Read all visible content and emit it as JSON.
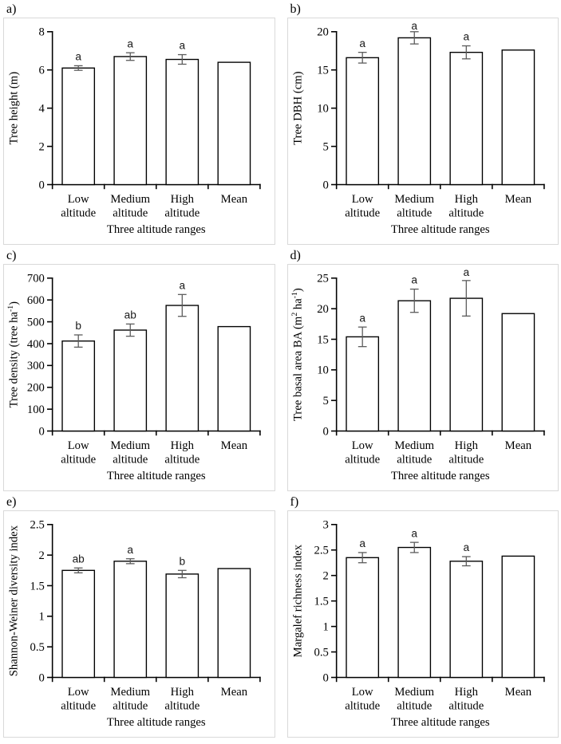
{
  "colors": {
    "bar_fill": "#ffffff",
    "bar_stroke": "#000000",
    "axis": "#000000",
    "error_bar": "#595959",
    "panel_border": "#d9d9d9"
  },
  "chart_data": [
    {
      "type": "bar",
      "panel": "a)",
      "ylabel": [
        {
          "t": "Tree height (m)",
          "sup": false
        }
      ],
      "xlabel": "Three altitude ranges",
      "categories": [
        [
          "Low",
          "altitude"
        ],
        [
          "Medium",
          "altitude"
        ],
        [
          "High",
          "altitude"
        ],
        [
          "Mean"
        ]
      ],
      "values": [
        6.1,
        6.7,
        6.55,
        6.4
      ],
      "errors": [
        0.12,
        0.2,
        0.25,
        null
      ],
      "letters": [
        "a",
        "a",
        "a",
        null
      ],
      "ylim": [
        0,
        8
      ],
      "yticks": [
        "0",
        "2",
        "4",
        "6",
        "8"
      ]
    },
    {
      "type": "bar",
      "panel": "b)",
      "ylabel": [
        {
          "t": "Tree DBH (cm)",
          "sup": false
        }
      ],
      "xlabel": "Three altitude ranges",
      "categories": [
        [
          "Low",
          "altitude"
        ],
        [
          "Medium",
          "altitude"
        ],
        [
          "High",
          "altitude"
        ],
        [
          "Mean"
        ]
      ],
      "values": [
        16.6,
        19.2,
        17.3,
        17.6
      ],
      "errors": [
        0.7,
        0.8,
        0.85,
        null
      ],
      "letters": [
        "a",
        "a",
        "a",
        null
      ],
      "ylim": [
        0,
        20
      ],
      "yticks": [
        "0",
        "5",
        "10",
        "15",
        "20"
      ]
    },
    {
      "type": "bar",
      "panel": "c)",
      "ylabel": [
        {
          "t": "Tree density (tree ha",
          "sup": false
        },
        {
          "t": "-1",
          "sup": true
        },
        {
          "t": ")",
          "sup": false
        }
      ],
      "xlabel": "Three altitude ranges",
      "categories": [
        [
          "Low",
          "altitude"
        ],
        [
          "Medium",
          "altitude"
        ],
        [
          "High",
          "altitude"
        ],
        [
          "Mean"
        ]
      ],
      "values": [
        412,
        462,
        575,
        478
      ],
      "errors": [
        28,
        28,
        50,
        null
      ],
      "letters": [
        "b",
        "ab",
        "a",
        null
      ],
      "ylim": [
        0,
        700
      ],
      "yticks": [
        "0",
        "100",
        "200",
        "300",
        "400",
        "500",
        "600",
        "700"
      ]
    },
    {
      "type": "bar",
      "panel": "d)",
      "ylabel": [
        {
          "t": "Tree basal area BA (m",
          "sup": false
        },
        {
          "t": "2",
          "sup": true
        },
        {
          "t": " ha",
          "sup": false
        },
        {
          "t": "-1",
          "sup": true
        },
        {
          "t": ")",
          "sup": false
        }
      ],
      "xlabel": "Three altitude ranges",
      "categories": [
        [
          "Low",
          "altitude"
        ],
        [
          "Medium",
          "altitude"
        ],
        [
          "High",
          "altitude"
        ],
        [
          "Mean"
        ]
      ],
      "values": [
        15.4,
        21.3,
        21.7,
        19.2
      ],
      "errors": [
        1.6,
        1.9,
        2.9,
        null
      ],
      "letters": [
        "a",
        "a",
        "a",
        null
      ],
      "ylim": [
        0,
        25
      ],
      "yticks": [
        "0",
        "5",
        "10",
        "15",
        "20",
        "25"
      ]
    },
    {
      "type": "bar",
      "panel": "e)",
      "ylabel": [
        {
          "t": "Shannon-Weiner diversity index",
          "sup": false
        }
      ],
      "xlabel": "Three altitude ranges",
      "categories": [
        [
          "Low",
          "altitude"
        ],
        [
          "Medium",
          "altitude"
        ],
        [
          "High",
          "altitude"
        ],
        [
          "Mean"
        ]
      ],
      "values": [
        1.75,
        1.9,
        1.69,
        1.78
      ],
      "errors": [
        0.04,
        0.04,
        0.06,
        null
      ],
      "letters": [
        "ab",
        "a",
        "b",
        null
      ],
      "ylim": [
        0,
        2.5
      ],
      "yticks": [
        "0",
        "0.5",
        "1",
        "1.5",
        "2",
        "2.5"
      ]
    },
    {
      "type": "bar",
      "panel": "f)",
      "ylabel": [
        {
          "t": "Margalef richness index",
          "sup": false
        }
      ],
      "xlabel": "Three altitude ranges",
      "categories": [
        [
          "Low",
          "altitude"
        ],
        [
          "Medium",
          "altitude"
        ],
        [
          "High",
          "altitude"
        ],
        [
          "Mean"
        ]
      ],
      "values": [
        2.35,
        2.55,
        2.28,
        2.38
      ],
      "errors": [
        0.1,
        0.1,
        0.09,
        null
      ],
      "letters": [
        "a",
        "a",
        "a",
        null
      ],
      "ylim": [
        0,
        3
      ],
      "yticks": [
        "0",
        "0.5",
        "1",
        "1.5",
        "2",
        "2.5",
        "3"
      ]
    }
  ]
}
